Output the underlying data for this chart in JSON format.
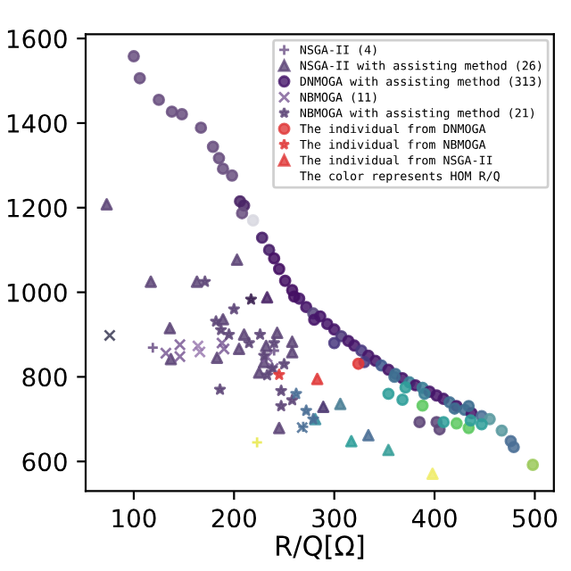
{
  "chart_data": {
    "type": "scatter",
    "xlabel": "R/Q[Ω]",
    "xlim": [
      52,
      519
    ],
    "ylim": [
      530,
      1610
    ],
    "xticks": [
      100,
      200,
      300,
      400,
      500
    ],
    "yticks": [
      600,
      800,
      1000,
      1200,
      1400,
      1600
    ],
    "grid": false,
    "legend": "top right",
    "annotations": [
      "The color represents HOM R/Q"
    ],
    "series": [
      {
        "name": "NSGA-II (4)",
        "marker": "plus",
        "color": "#6a4f85",
        "x": [
          119,
          223,
          240,
          269
        ],
        "values": [
          869,
          645,
          862,
          682
        ],
        "colors": [
          "#6a4f85",
          "#e8e84a",
          "#6a4f85",
          "#4a6f95"
        ]
      },
      {
        "name": "NSGA-II with assisting method (26)",
        "marker": "triangle",
        "color": "#5e4678",
        "x": [
          73,
          203,
          117,
          163,
          233,
          136,
          137,
          189,
          183,
          205,
          230,
          232,
          243,
          258,
          258,
          289,
          306,
          281,
          245,
          317,
          334,
          354,
          398,
          210,
          225
        ],
        "values": [
          1208,
          1077,
          1025,
          1025,
          988,
          915,
          842,
          936,
          845,
          866,
          835,
          873,
          904,
          883,
          858,
          729,
          736,
          700,
          679,
          648,
          662,
          627,
          571,
          900,
          810
        ],
        "colors": [
          "#5e4678",
          "#5e4678",
          "#5e4678",
          "#5e4678",
          "#4a2566",
          "#5e4678",
          "#5e4678",
          "#5e4678",
          "#5e4678",
          "#5e4678",
          "#5e4678",
          "#5e4678",
          "#5e4678",
          "#5e4678",
          "#5e4678",
          "#4a3670",
          "#4a7f95",
          "#3a8fa0",
          "#5e4678",
          "#2f9f9a",
          "#4a6f95",
          "#3aa09a",
          "#f0ec6a",
          "#5e4678",
          "#5e4678"
        ]
      },
      {
        "name": "DNMOGA with assisting method (313)",
        "marker": "circle",
        "color": "#46166a",
        "x": [
          100,
          106,
          125,
          138,
          148,
          167,
          179,
          185,
          189,
          198,
          206,
          210,
          208,
          219,
          228,
          235,
          240,
          245,
          251,
          258,
          265,
          272,
          279,
          286,
          293,
          300,
          307,
          314,
          320,
          327,
          334,
          341,
          347,
          354,
          361,
          368,
          375,
          381,
          388,
          395,
          402,
          409,
          415,
          422,
          430,
          437,
          447,
          455,
          467,
          476,
          479,
          498,
          354,
          368,
          388,
          385,
          402,
          405,
          409,
          422,
          434,
          436,
          447,
          434,
          371,
          260,
          280,
          300,
          330,
          360,
          390,
          420
        ],
        "values": [
          1558,
          1506,
          1455,
          1427,
          1421,
          1389,
          1344,
          1317,
          1292,
          1276,
          1215,
          1205,
          1187,
          1170,
          1129,
          1100,
          1080,
          1055,
          1027,
          1005,
          985,
          965,
          950,
          943,
          925,
          912,
          896,
          885,
          874,
          862,
          850,
          838,
          827,
          817,
          807,
          797,
          787,
          780,
          774,
          765,
          756,
          748,
          740,
          731,
          722,
          714,
          707,
          700,
          673,
          648,
          634,
          592,
          760,
          746,
          732,
          693,
          693,
          676,
          693,
          690,
          679,
          697,
          688,
          731,
          775,
          990,
          935,
          880,
          835,
          800,
          760,
          725
        ],
        "colors": [
          "#6a5080",
          "#6a5080",
          "#6a5080",
          "#6a5080",
          "#6a5080",
          "#6a5080",
          "#6a5080",
          "#6a5080",
          "#6a5080",
          "#6a5080",
          "#4a2566",
          "#4a2566",
          "#6a5080",
          "#d8d8e0",
          "#48206a",
          "#48206a",
          "#440f63",
          "#440f63",
          "#440f63",
          "#440f63",
          "#46166a",
          "#46166a",
          "#5a4a80",
          "#46166a",
          "#46166a",
          "#46166a",
          "#4e3a7a",
          "#46166a",
          "#46166a",
          "#4a3a80",
          "#46166a",
          "#46166a",
          "#3e5a8e",
          "#46166a",
          "#3e6f90",
          "#46166a",
          "#3a7f95",
          "#46166a",
          "#3a7f95",
          "#46166a",
          "#46166a",
          "#46166a",
          "#3e6f90",
          "#46166a",
          "#3e6f90",
          "#46166a",
          "#4a6f95",
          "#5a9aa0",
          "#5a9aa0",
          "#4a6f95",
          "#4a6f95",
          "#9bc95a",
          "#2f9f9a",
          "#2f9f9a",
          "#5ec962",
          "#5e4678",
          "#5e4678",
          "#5e4678",
          "#2f9f9a",
          "#5ec962",
          "#5ec962",
          "#2f9f9a",
          "#2f9f9a",
          "#3e6f90",
          "#2f9f9a",
          "#440f63",
          "#46166a",
          "#4a3a80",
          "#4a3a80",
          "#3e6f90",
          "#3a7f95",
          "#3e6f90"
        ]
      },
      {
        "name": "NBMOGA (11)",
        "marker": "cross",
        "color": "#7a5a95",
        "x": [
          76,
          132,
          146,
          146,
          164,
          166,
          188,
          190,
          233,
          239,
          268
        ],
        "values": [
          898,
          856,
          876,
          848,
          873,
          859,
          880,
          866,
          847,
          820,
          680
        ],
        "colors": [
          "#3a3a55",
          "#7a5a95",
          "#7a5a95",
          "#7a5a95",
          "#9a7ab0",
          "#9a7ab0",
          "#7a5a95",
          "#7a5a95",
          "#7a5a95",
          "#7a5a95",
          "#4a6f95"
        ]
      },
      {
        "name": "NBMOGA with assisting method (21)",
        "marker": "star",
        "color": "#5e4678",
        "x": [
          171,
          217,
          182,
          187,
          226,
          186,
          240,
          233,
          247,
          247,
          258,
          279,
          200,
          215,
          230,
          250,
          262,
          272,
          195,
          238
        ],
        "values": [
          1025,
          983,
          931,
          911,
          900,
          770,
          880,
          804,
          767,
          731,
          745,
          700,
          960,
          880,
          850,
          830,
          760,
          720,
          900,
          820
        ],
        "colors": [
          "#5e4678",
          "#3a2050",
          "#5e4678",
          "#5e4678",
          "#5e4678",
          "#5e4678",
          "#5e4678",
          "#5e4678",
          "#5e4678",
          "#5e4678",
          "#5e4678",
          "#4a6f95",
          "#5e4678",
          "#5e4678",
          "#5e4678",
          "#5e4678",
          "#4a6f95",
          "#4a6f95",
          "#5e4678",
          "#5e4678"
        ]
      },
      {
        "name": "The individual from DNMOGA",
        "marker": "circle",
        "color": "#e03a3a",
        "x": [
          324
        ],
        "values": [
          831
        ]
      },
      {
        "name": "The individual from NBMOGA",
        "marker": "star",
        "color": "#e03a3a",
        "x": [
          245
        ],
        "values": [
          805
        ]
      },
      {
        "name": "The individual from NSGA-II",
        "marker": "triangle",
        "color": "#e03a3a",
        "x": [
          283
        ],
        "values": [
          795
        ]
      }
    ]
  }
}
